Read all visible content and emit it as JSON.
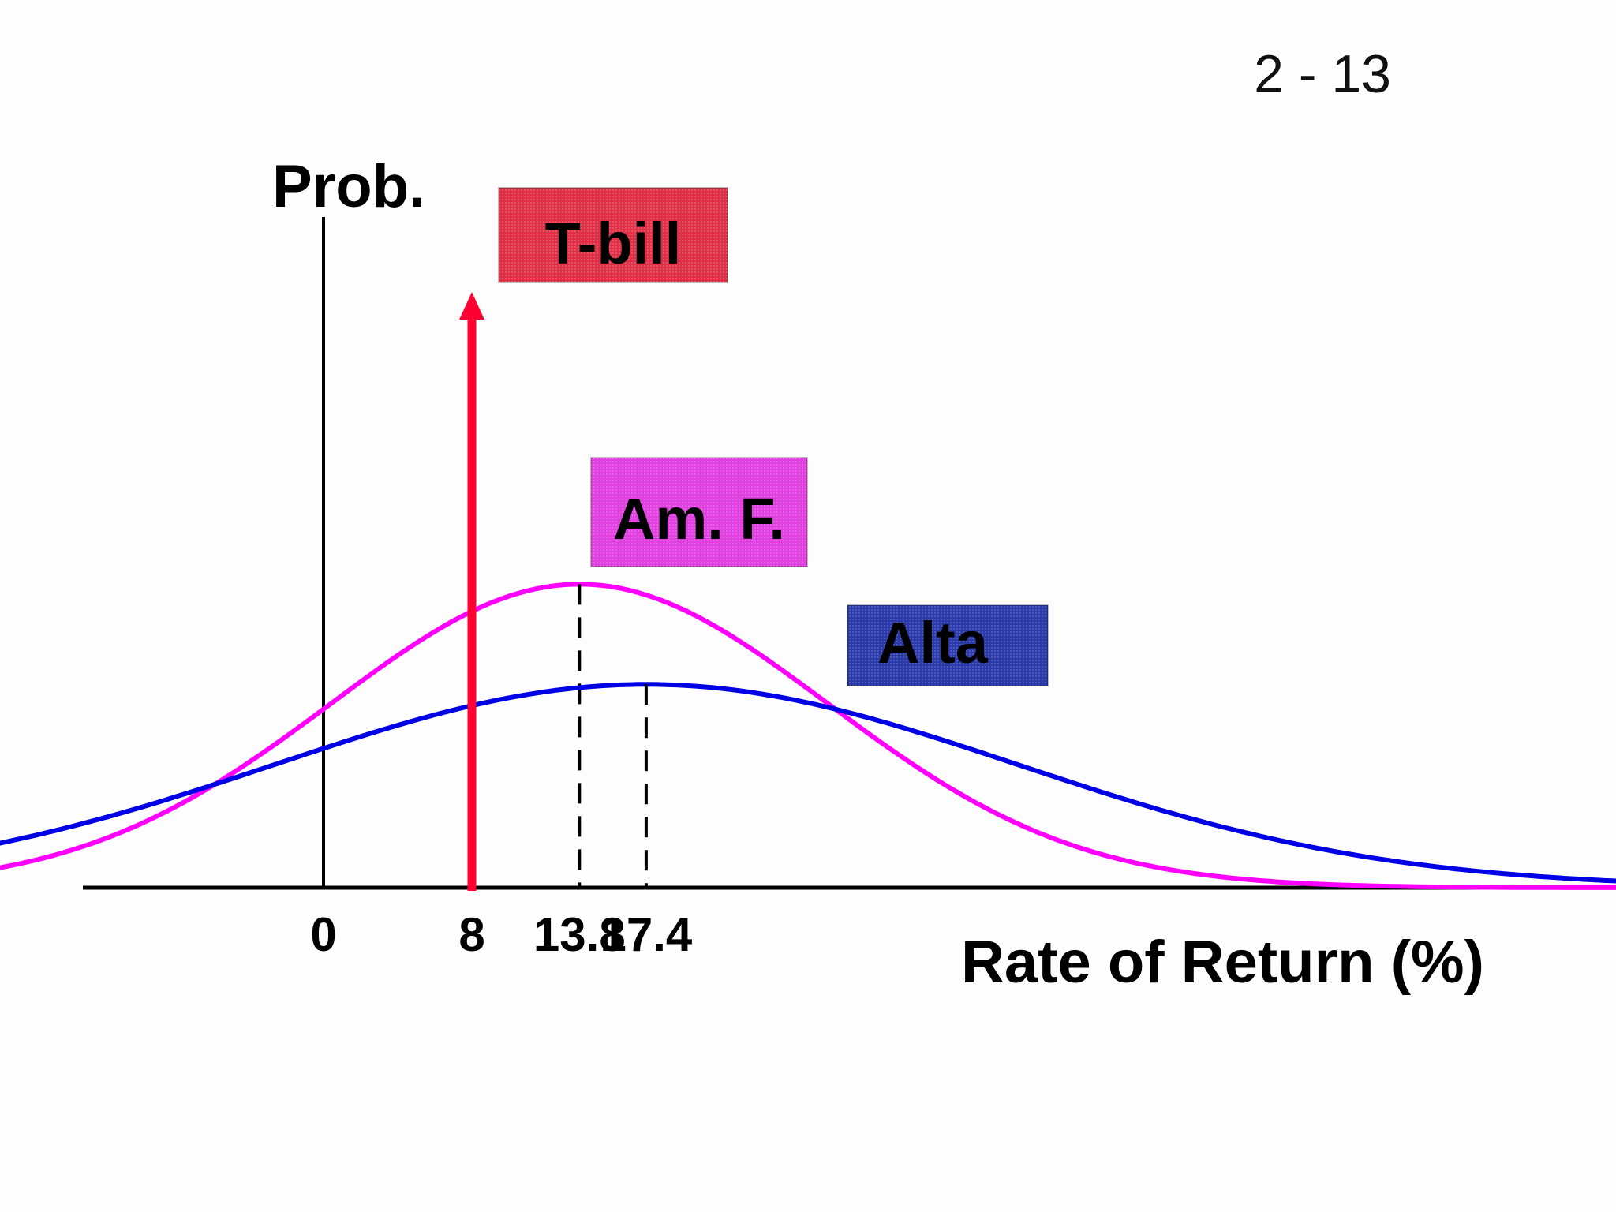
{
  "page_number": "2 - 13",
  "colors": {
    "tbill": "#ff0033",
    "tbill_box": "#e03048",
    "amf": "#ff00ff",
    "amf_box": "#e040e0",
    "alta": "#0000e6",
    "alta_box": "#2a3aaa",
    "axis": "#000000"
  },
  "chart_data": {
    "type": "line",
    "title": "",
    "ylabel": "Prob.",
    "xlabel": "Rate of Return (%)",
    "xlim": [
      -30,
      106
    ],
    "ylim": [
      0,
      0.07
    ],
    "x_ticks": [
      {
        "value": 0,
        "label": "0"
      },
      {
        "value": 8,
        "label": "8"
      },
      {
        "value": 13.8,
        "label": "13.8"
      },
      {
        "value": 17.4,
        "label": "17.4"
      }
    ],
    "series": [
      {
        "name": "T-bill",
        "kind": "spike",
        "x": 8,
        "color": "tbill",
        "label_box": {
          "x": 8,
          "label": "T-bill"
        }
      },
      {
        "name": "Am. F.",
        "kind": "normal",
        "mean": 13.8,
        "std": 13.4,
        "x_range": [
          -30,
          75
        ],
        "color": "amf",
        "mean_marker": true
      },
      {
        "name": "Alta",
        "kind": "normal",
        "mean": 17.4,
        "std": 20.0,
        "x_range": [
          -30,
          106
        ],
        "color": "alta",
        "mean_marker": true
      }
    ]
  }
}
